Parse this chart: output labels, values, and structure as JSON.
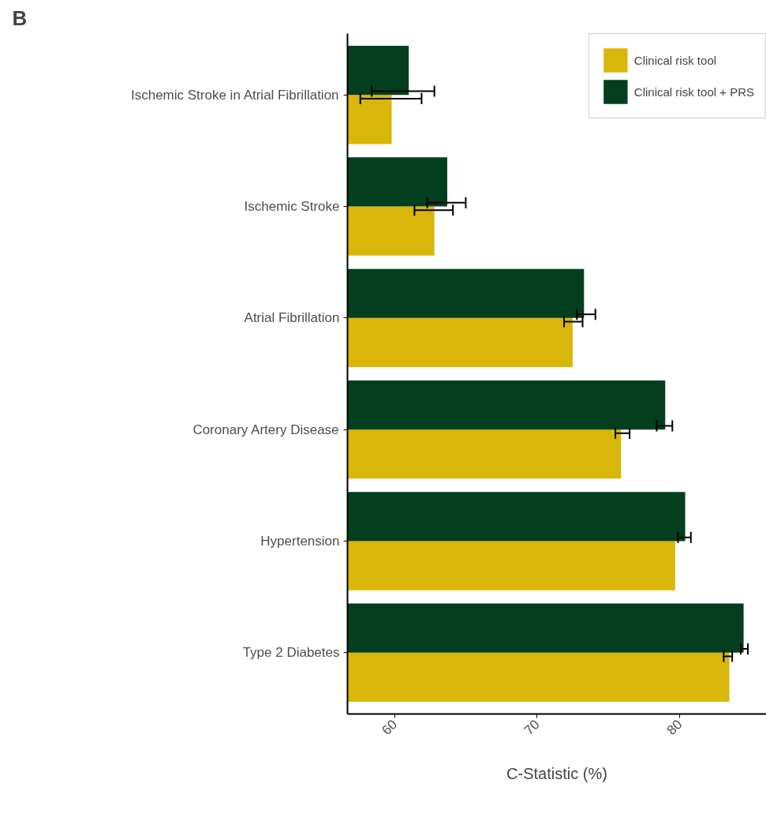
{
  "chart_data": {
    "type": "bar",
    "orientation": "horizontal",
    "title": "B",
    "xlabel": "C-Statistic (%)",
    "categories": [
      "Ischemic Stroke in Atrial Fibrillation",
      "Ischemic Stroke",
      "Atrial Fibrillation",
      "Coronary Artery Disease",
      "Hypertension",
      "Type 2 Diabetes"
    ],
    "series": [
      {
        "name": "Clinical risk tool",
        "color": "#d9b60a",
        "values": [
          59.8,
          62.8,
          72.5,
          75.9,
          79.7,
          83.5
        ],
        "errors": [
          [
            57.6,
            61.9
          ],
          [
            61.4,
            64.1
          ],
          [
            71.9,
            73.2
          ],
          [
            75.5,
            76.5
          ],
          null,
          [
            83.1,
            83.7
          ]
        ]
      },
      {
        "name": "Clinical risk tool + PRS",
        "color": "#033f1e",
        "values": [
          61.0,
          63.7,
          73.3,
          79.0,
          80.4,
          84.5
        ],
        "errors": [
          [
            58.4,
            62.8
          ],
          [
            62.3,
            65.0
          ],
          [
            72.8,
            74.1
          ],
          [
            78.4,
            79.5
          ],
          [
            79.9,
            80.8
          ],
          [
            84.3,
            84.8
          ]
        ]
      }
    ],
    "xlim": [
      56.7,
      86.1
    ],
    "xticks": [
      60,
      70,
      80
    ],
    "grid": false,
    "legend": "top right"
  }
}
